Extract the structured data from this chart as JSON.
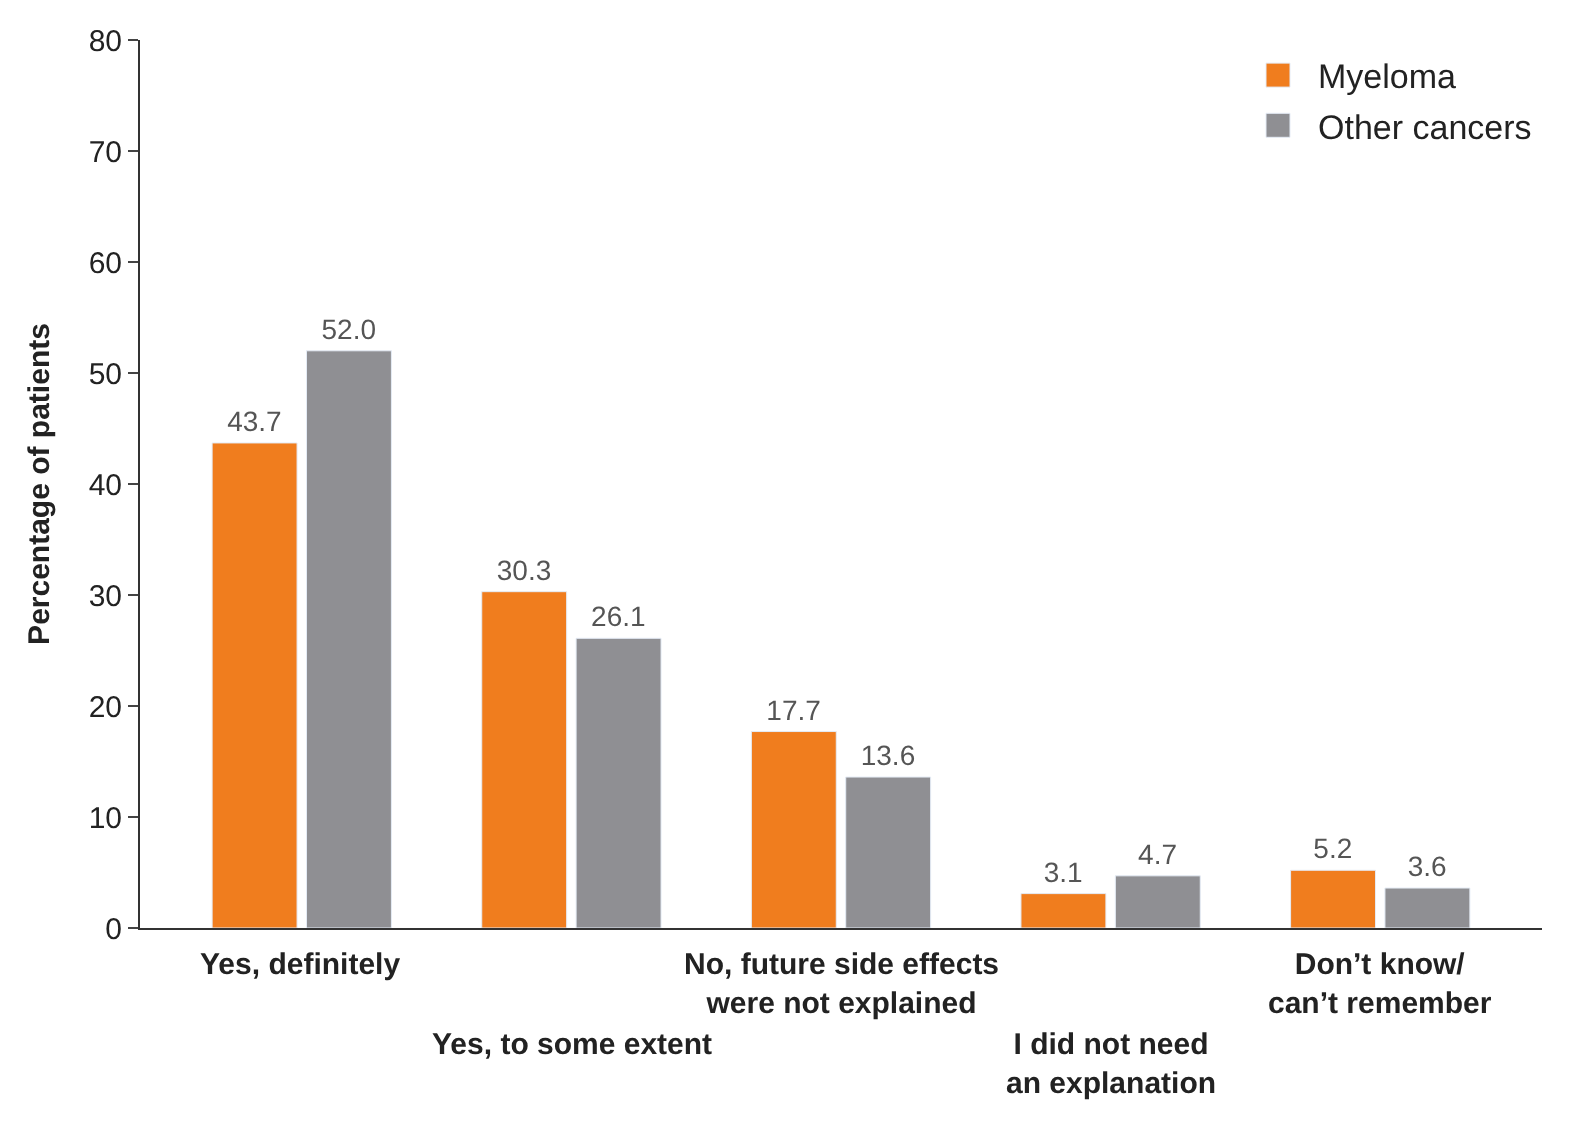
{
  "chart_data": {
    "type": "bar",
    "ylabel": "Percentage of patients",
    "categories": [
      "Yes, definitely",
      "Yes, to some extent",
      "No, future side effects\nwere not explained",
      "I did not need\nan explanation",
      "Don’t know/\ncan’t remember"
    ],
    "series": [
      {
        "name": "Myeloma",
        "color": "#f07d1e",
        "values": [
          43.7,
          30.3,
          17.7,
          3.1,
          5.2
        ],
        "value_labels": [
          "43.7",
          "30.3",
          "17.7",
          "3.1",
          "5.2"
        ]
      },
      {
        "name": "Other cancers",
        "color": "#8f8f93",
        "values": [
          52.0,
          26.1,
          13.6,
          4.7,
          3.6
        ],
        "value_labels": [
          "52.0",
          "26.1",
          "13.6",
          "4.7",
          "3.6"
        ]
      }
    ],
    "ylim": [
      0,
      80
    ],
    "yticks": [
      0,
      10,
      20,
      30,
      40,
      50,
      60,
      70,
      80
    ],
    "legend": "top right"
  }
}
